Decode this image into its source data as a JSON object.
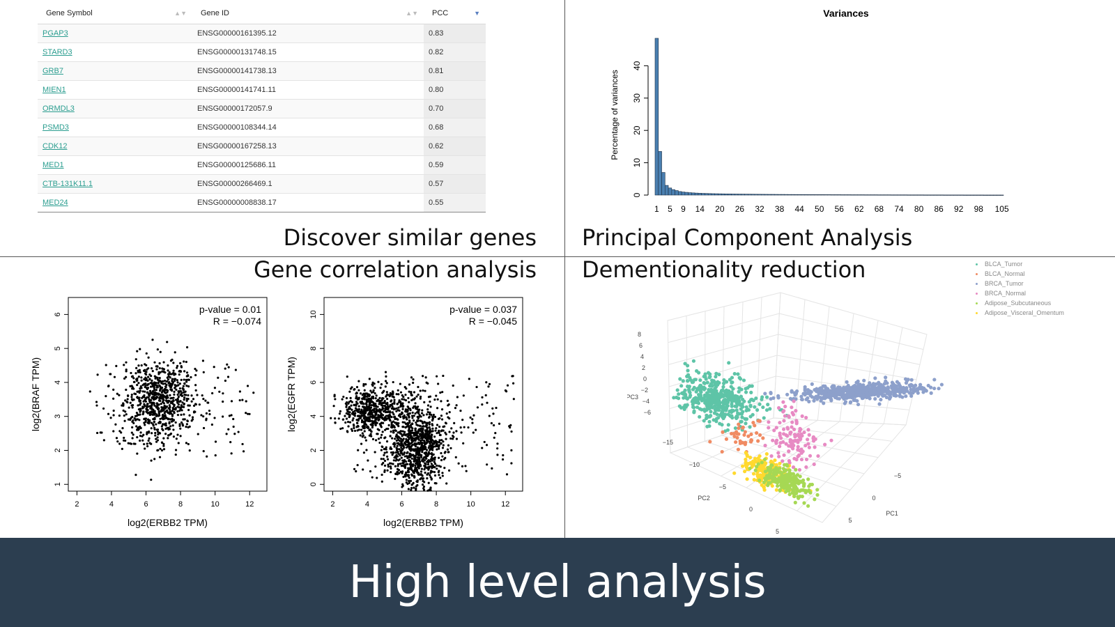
{
  "table": {
    "headers": [
      "Gene Symbol",
      "Gene ID",
      "PCC"
    ],
    "rows": [
      {
        "symbol": "PGAP3",
        "id": "ENSG00000161395.12",
        "pcc": "0.83"
      },
      {
        "symbol": "STARD3",
        "id": "ENSG00000131748.15",
        "pcc": "0.82"
      },
      {
        "symbol": "GRB7",
        "id": "ENSG00000141738.13",
        "pcc": "0.81"
      },
      {
        "symbol": "MIEN1",
        "id": "ENSG00000141741.11",
        "pcc": "0.80"
      },
      {
        "symbol": "ORMDL3",
        "id": "ENSG00000172057.9",
        "pcc": "0.70"
      },
      {
        "symbol": "PSMD3",
        "id": "ENSG00000108344.14",
        "pcc": "0.68"
      },
      {
        "symbol": "CDK12",
        "id": "ENSG00000167258.13",
        "pcc": "0.62"
      },
      {
        "symbol": "MED1",
        "id": "ENSG00000125686.11",
        "pcc": "0.59"
      },
      {
        "symbol": "CTB-131K11.1",
        "id": "ENSG00000266469.1",
        "pcc": "0.57"
      },
      {
        "symbol": "MED24",
        "id": "ENSG00000008838.17",
        "pcc": "0.55"
      }
    ]
  },
  "captions": {
    "similar": "Discover similar genes",
    "pca": "Principal Component Analysis",
    "correlation": "Gene correlation analysis",
    "reduction": "Dementionality reduction"
  },
  "footer_title": "High level analysis",
  "chart_data": [
    {
      "type": "bar",
      "title": "Variances",
      "ylabel": "Percentage of variances",
      "xlabel": "",
      "ylim": [
        0,
        50
      ],
      "yticks": [
        0,
        10,
        20,
        30,
        40
      ],
      "xtick_labels": [
        "1",
        "5",
        "9",
        "14",
        "20",
        "26",
        "32",
        "38",
        "44",
        "50",
        "56",
        "62",
        "68",
        "74",
        "80",
        "86",
        "92",
        "98",
        "105"
      ],
      "values": [
        48.5,
        13.5,
        7.0,
        3.0,
        2.2,
        1.7,
        1.4,
        1.1,
        0.95,
        0.85,
        0.75,
        0.68,
        0.62,
        0.57,
        0.53,
        0.5,
        0.47,
        0.44,
        0.42,
        0.4,
        0.38,
        0.36,
        0.35,
        0.33,
        0.32,
        0.31,
        0.3,
        0.29,
        0.28,
        0.27,
        0.26,
        0.25,
        0.24,
        0.23,
        0.22,
        0.22,
        0.21,
        0.2,
        0.2,
        0.19,
        0.18,
        0.18,
        0.17,
        0.17,
        0.16,
        0.16,
        0.15,
        0.15,
        0.14,
        0.14,
        0.14,
        0.13,
        0.13,
        0.12,
        0.12,
        0.12,
        0.11,
        0.11,
        0.11,
        0.1,
        0.1,
        0.1,
        0.1,
        0.09,
        0.09,
        0.09,
        0.09,
        0.08,
        0.08,
        0.08,
        0.08,
        0.07,
        0.07,
        0.07,
        0.07,
        0.07,
        0.06,
        0.06,
        0.06,
        0.06,
        0.06,
        0.05,
        0.05,
        0.05,
        0.05,
        0.05,
        0.05,
        0.04,
        0.04,
        0.04,
        0.04,
        0.04,
        0.04,
        0.03,
        0.03,
        0.03,
        0.03,
        0.03,
        0.03,
        0.02,
        0.02,
        0.02,
        0.02,
        0.02,
        0.02
      ]
    },
    {
      "type": "scatter",
      "xlabel": "log2(ERBB2 TPM)",
      "ylabel": "log2(BRAF TPM)",
      "annotation": [
        "p-value = 0.01",
        "R = −0.074"
      ],
      "xlim": [
        1.5,
        13
      ],
      "ylim": [
        0.8,
        6.5
      ],
      "xticks": [
        2,
        4,
        6,
        8,
        10,
        12
      ],
      "yticks": [
        1,
        2,
        3,
        4,
        5,
        6
      ],
      "n_points": 900
    },
    {
      "type": "scatter",
      "xlabel": "log2(ERBB2 TPM)",
      "ylabel": "log2(EGFR TPM)",
      "annotation": [
        "p-value = 0.037",
        "R = −0.045"
      ],
      "xlim": [
        1.5,
        13
      ],
      "ylim": [
        -0.4,
        11
      ],
      "xticks": [
        2,
        4,
        6,
        8,
        10,
        12
      ],
      "yticks": [
        0,
        2,
        4,
        6,
        8,
        10
      ],
      "n_points": 1700
    },
    {
      "type": "scatter",
      "subtype": "3d",
      "axes": [
        "PC1",
        "PC2",
        "PC3"
      ],
      "pc3_ticks": [
        "8",
        "6",
        "4",
        "2",
        "0",
        "−2",
        "−4",
        "−6"
      ],
      "pc2_ticks": [
        "−15",
        "−10",
        "−5",
        "0",
        "5"
      ],
      "pc1_ticks": [
        "−5",
        "0",
        "5"
      ],
      "legend": [
        {
          "name": "BLCA_Tumor",
          "color": "#5ec4a7"
        },
        {
          "name": "BLCA_Normal",
          "color": "#f08b63"
        },
        {
          "name": "BRCA_Tumor",
          "color": "#8da0cb"
        },
        {
          "name": "BRCA_Normal",
          "color": "#e78ac3"
        },
        {
          "name": "Adipose_Subcutaneous",
          "color": "#a6d854"
        },
        {
          "name": "Adipose_Visceral_Omentum",
          "color": "#ffd92f"
        }
      ]
    }
  ]
}
